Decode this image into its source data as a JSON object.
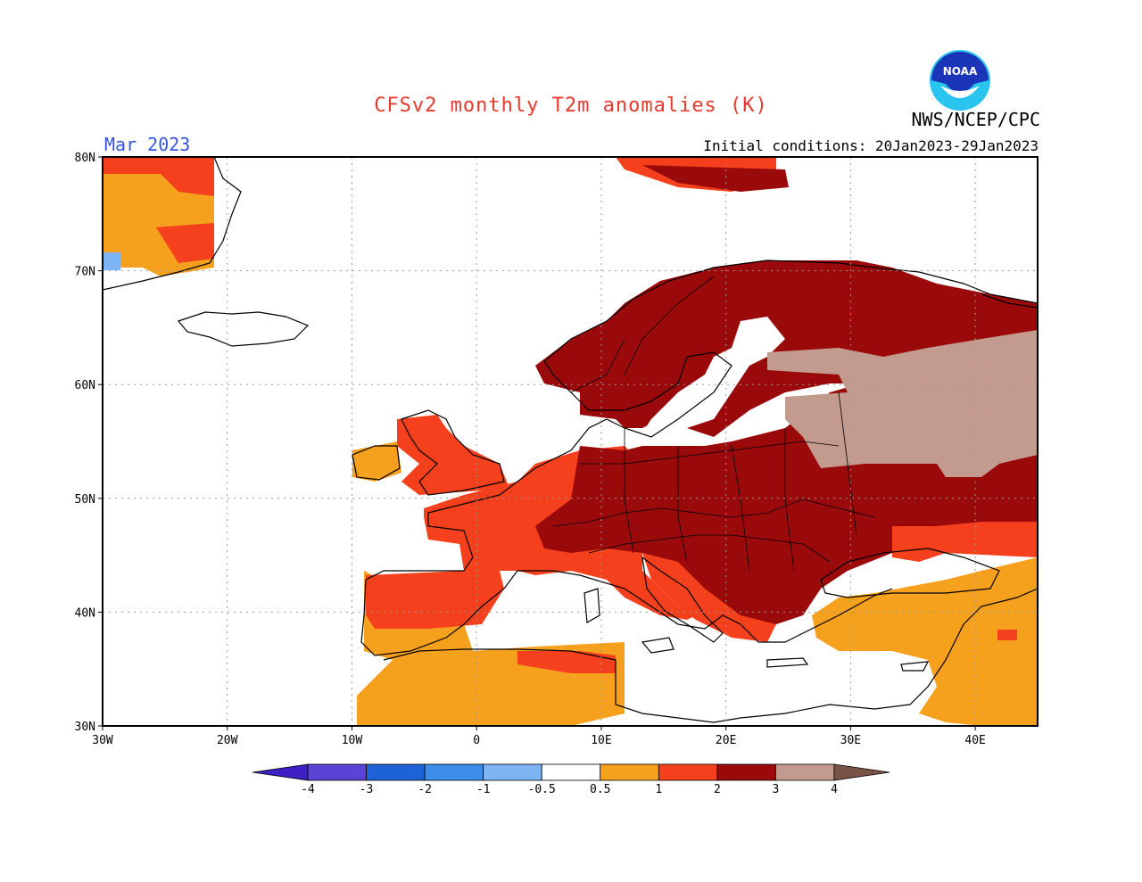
{
  "header": {
    "title": "CFSv2 monthly T2m anomalies (K)",
    "month": "Mar 2023",
    "agency": "NWS/NCEP/CPC",
    "initial_conditions": "Initial conditions: 20Jan2023-29Jan2023",
    "logo_text": "NOAA"
  },
  "map": {
    "lon_range": [
      -30,
      45
    ],
    "lat_range": [
      30,
      80
    ],
    "lon_labels": [
      "30W",
      "20W",
      "10W",
      "0",
      "10E",
      "20E",
      "30E",
      "40E"
    ],
    "lat_labels": [
      "30N",
      "40N",
      "50N",
      "60N",
      "70N",
      "80N"
    ],
    "regions": [
      {
        "name": "Greenland coast",
        "anomaly_class": "0.5-1"
      },
      {
        "name": "British Isles",
        "anomaly_class": "1-2"
      },
      {
        "name": "Iberia north",
        "anomaly_class": "1-2"
      },
      {
        "name": "Iberia south",
        "anomaly_class": "0.5-1"
      },
      {
        "name": "France",
        "anomaly_class": "1-2"
      },
      {
        "name": "Central Europe",
        "anomaly_class": "2-3"
      },
      {
        "name": "Scandinavia",
        "anomaly_class": "2-3"
      },
      {
        "name": "Western Russia",
        "anomaly_class": "3-4"
      },
      {
        "name": "Turkey",
        "anomaly_class": "0.5-1"
      },
      {
        "name": "North Africa",
        "anomaly_class": "0.5-1"
      }
    ]
  },
  "colorbar": {
    "labels": [
      "-4",
      "-3",
      "-2",
      "-1",
      "-0.5",
      "0.5",
      "1",
      "2",
      "3",
      "4"
    ],
    "colors": [
      "#3d1fc4",
      "#5a44d6",
      "#1e62d8",
      "#3d8ee8",
      "#7cb4f4",
      "#ffffff",
      "#f6a11e",
      "#f4401c",
      "#9b0a0a",
      "#c29b8e",
      "#7a5347"
    ]
  }
}
